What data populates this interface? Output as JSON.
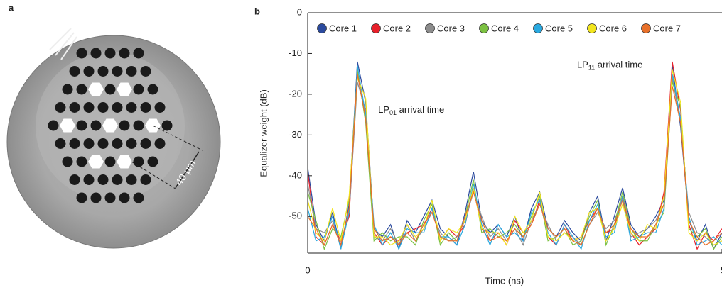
{
  "panel_a": {
    "label": "a",
    "scale_bar": "40 µm"
  },
  "chart_data": {
    "type": "line",
    "label": "b",
    "xlabel": "Time (ns)",
    "ylabel": "Equalizer weight (dB)",
    "annotations": [
      {
        "text": "LP",
        "sub": "01",
        "rest": " arrival time",
        "x": 0.85,
        "y": -24
      },
      {
        "text": "LP",
        "sub": "11",
        "rest": " arrival time",
        "x": 3.25,
        "y": -13
      }
    ],
    "x": [
      0,
      0.1,
      0.2,
      0.3,
      0.4,
      0.5,
      0.6,
      0.7,
      0.8,
      0.9,
      1,
      1.1,
      1.2,
      1.3,
      1.4,
      1.5,
      1.6,
      1.7,
      1.8,
      1.9,
      2,
      2.1,
      2.2,
      2.3,
      2.4,
      2.5,
      2.6,
      2.7,
      2.8,
      2.9,
      3,
      3.1,
      3.2,
      3.3,
      3.4,
      3.5,
      3.6,
      3.7,
      3.8,
      3.9,
      4,
      4.1,
      4.2,
      4.3,
      4.4,
      4.5,
      4.6,
      4.7,
      4.8,
      4.9,
      5
    ],
    "xlim": [
      0,
      5
    ],
    "xticks": [
      0,
      5
    ],
    "ylim": [
      -59,
      0
    ],
    "yticks": [
      0,
      -10,
      -20,
      -30,
      -40,
      -50
    ],
    "series": [
      {
        "name": "Core 1",
        "color": "#2b4a9e",
        "values": [
          -38,
          -52,
          -56,
          -49,
          -58,
          -47,
          -12,
          -22,
          -53,
          -55,
          -52,
          -58,
          -51,
          -54,
          -50,
          -46,
          -53,
          -55,
          -57,
          -49,
          -39,
          -51,
          -54,
          -52,
          -55,
          -50,
          -56,
          -48,
          -44,
          -53,
          -55,
          -51,
          -54,
          -56,
          -49,
          -45,
          -56,
          -50,
          -43,
          -52,
          -55,
          -53,
          -50,
          -46,
          -13,
          -28,
          -51,
          -56,
          -52,
          -58,
          -54
        ]
      },
      {
        "name": "Core 2",
        "color": "#e8202a",
        "values": [
          -39,
          -55,
          -57,
          -52,
          -56,
          -50,
          -15,
          -26,
          -54,
          -57,
          -55,
          -56,
          -54,
          -53,
          -52,
          -48,
          -56,
          -53,
          -55,
          -52,
          -43,
          -53,
          -56,
          -54,
          -57,
          -51,
          -54,
          -52,
          -46,
          -55,
          -57,
          -52,
          -56,
          -55,
          -51,
          -48,
          -54,
          -53,
          -45,
          -54,
          -57,
          -55,
          -53,
          -44,
          -12,
          -24,
          -52,
          -58,
          -54,
          -56,
          -53
        ]
      },
      {
        "name": "Core 3",
        "color": "#8c8c8c",
        "values": [
          -42,
          -53,
          -54,
          -51,
          -57,
          -49,
          -17,
          -24,
          -55,
          -56,
          -53,
          -57,
          -52,
          -56,
          -53,
          -49,
          -54,
          -56,
          -55,
          -51,
          -44,
          -50,
          -55,
          -53,
          -56,
          -53,
          -57,
          -51,
          -47,
          -52,
          -56,
          -54,
          -55,
          -57,
          -52,
          -49,
          -53,
          -51,
          -46,
          -55,
          -54,
          -53,
          -51,
          -47,
          -16,
          -27,
          -49,
          -54,
          -55,
          -57,
          -56
        ]
      },
      {
        "name": "Core 4",
        "color": "#7cc142",
        "values": [
          -44,
          -51,
          -58,
          -53,
          -55,
          -46,
          -14,
          -27,
          -56,
          -54,
          -56,
          -55,
          -55,
          -57,
          -51,
          -47,
          -57,
          -54,
          -56,
          -50,
          -41,
          -54,
          -53,
          -55,
          -54,
          -52,
          -55,
          -50,
          -45,
          -56,
          -55,
          -53,
          -57,
          -56,
          -50,
          -46,
          -57,
          -52,
          -44,
          -53,
          -56,
          -56,
          -52,
          -49,
          -17,
          -23,
          -53,
          -55,
          -53,
          -58,
          -55
        ]
      },
      {
        "name": "Core 5",
        "color": "#29a9e0",
        "values": [
          -48,
          -56,
          -55,
          -50,
          -58,
          -49,
          -13,
          -25,
          -52,
          -57,
          -54,
          -58,
          -53,
          -54,
          -54,
          -48,
          -55,
          -55,
          -57,
          -52,
          -42,
          -52,
          -57,
          -52,
          -55,
          -54,
          -56,
          -49,
          -46,
          -54,
          -57,
          -52,
          -55,
          -58,
          -51,
          -47,
          -55,
          -54,
          -45,
          -56,
          -55,
          -54,
          -54,
          -48,
          -15,
          -26,
          -50,
          -57,
          -56,
          -55,
          -57
        ]
      },
      {
        "name": "Core 6",
        "color": "#f2e51d",
        "values": [
          -46,
          -54,
          -56,
          -48,
          -56,
          -45,
          -16,
          -21,
          -55,
          -55,
          -57,
          -56,
          -52,
          -55,
          -53,
          -46,
          -56,
          -53,
          -54,
          -51,
          -43,
          -53,
          -54,
          -54,
          -57,
          -50,
          -54,
          -51,
          -44,
          -55,
          -56,
          -54,
          -56,
          -55,
          -49,
          -48,
          -56,
          -53,
          -47,
          -54,
          -56,
          -52,
          -53,
          -45,
          -14,
          -22,
          -54,
          -56,
          -54,
          -57,
          -56
        ]
      },
      {
        "name": "Core 7",
        "color": "#e8702a",
        "values": [
          -50,
          -53,
          -57,
          -52,
          -57,
          -48,
          -15,
          -26,
          -53,
          -56,
          -55,
          -57,
          -54,
          -56,
          -52,
          -49,
          -55,
          -56,
          -56,
          -50,
          -44,
          -51,
          -56,
          -55,
          -56,
          -53,
          -55,
          -52,
          -47,
          -53,
          -55,
          -53,
          -56,
          -57,
          -52,
          -48,
          -54,
          -52,
          -46,
          -53,
          -55,
          -55,
          -52,
          -47,
          -18,
          -27,
          -51,
          -55,
          -57,
          -56,
          -54
        ]
      }
    ]
  }
}
